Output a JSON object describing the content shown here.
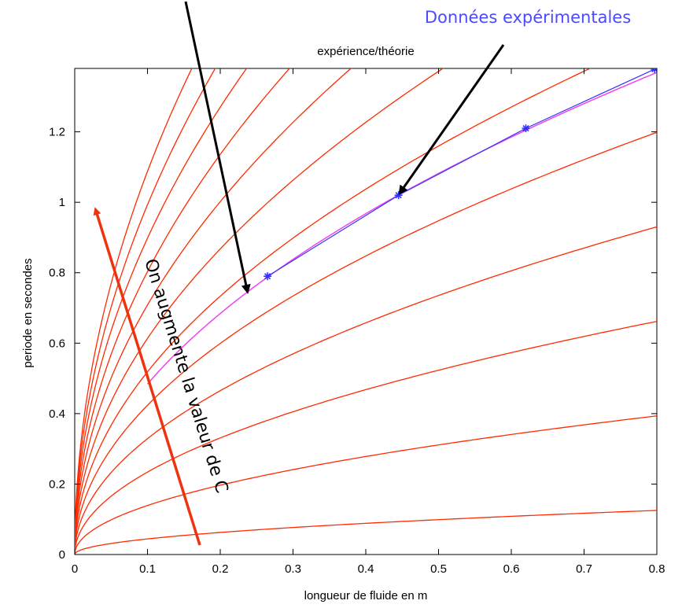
{
  "chart_data": {
    "type": "line",
    "title": "expérience/théorie",
    "xlabel": "longueur de fluide en m",
    "ylabel": "periode en secondes",
    "xlim": [
      0,
      0.8
    ],
    "ylim": [
      0,
      1.38
    ],
    "x_ticks": [
      "0",
      "0.1",
      "0.2",
      "0.3",
      "0.4",
      "0.5",
      "0.6",
      "0.7",
      "0.8"
    ],
    "y_ticks": [
      "0",
      "0.2",
      "0.4",
      "0.6",
      "0.8",
      "1",
      "1.2"
    ],
    "grid": false,
    "theory_curves": {
      "color": "#ff2a00",
      "form": "T = k * sqrt(L)",
      "k_values": [
        0.14,
        0.44,
        0.74,
        1.04,
        1.34,
        1.64,
        1.94,
        2.24,
        2.54,
        2.84,
        3.14,
        3.44
      ]
    },
    "fit_curve": {
      "color": "#ee44ee",
      "k": 1.53,
      "x_range": [
        0.1,
        0.8
      ]
    },
    "series": [
      {
        "color": "#3333ff",
        "marker": "*",
        "points": [
          {
            "x": 0.265,
            "y": 0.79
          },
          {
            "x": 0.445,
            "y": 1.02
          },
          {
            "x": 0.62,
            "y": 1.21
          },
          {
            "x": 0.797,
            "y": 1.378
          }
        ]
      }
    ],
    "annotations": {
      "data_label": "Données expérimentales",
      "arrow_label": "On augmente la valeur de C"
    },
    "colors": {
      "annotation_blue": "#4a4aff",
      "arrow_red": "#ee3311",
      "arrow_black": "#000000"
    }
  }
}
